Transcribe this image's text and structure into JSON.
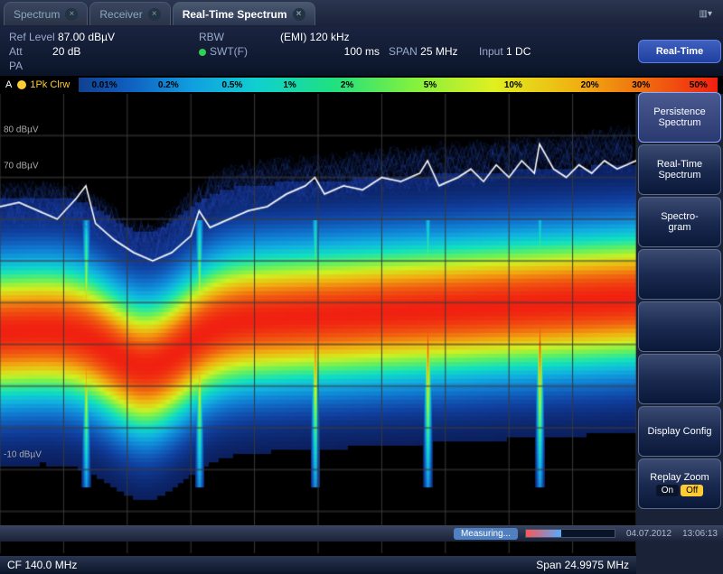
{
  "tabs": [
    {
      "label": "Spectrum",
      "active": false
    },
    {
      "label": "Receiver",
      "active": false
    },
    {
      "label": "Real-Time Spectrum",
      "active": true
    }
  ],
  "mode_label": "Real-Time",
  "settings": {
    "ref_level_lbl": "Ref Level",
    "ref_level_val": "87.00 dBµV",
    "rbw_lbl": "RBW",
    "rbw_val": "(EMI) 120 kHz",
    "att_lbl": "Att",
    "att_val": "20 dB",
    "swt_lbl": "SWT(F)",
    "swt_val": "100 ms",
    "span_lbl": "SPAN",
    "span_val": "25 MHz",
    "input_lbl": "Input",
    "input_val": "1 DC",
    "pa_lbl": "PA"
  },
  "trace": {
    "id": "A",
    "mode": "1Pk Clrw"
  },
  "gradient_ticks": [
    {
      "label": "0.01%",
      "pos": 4
    },
    {
      "label": "0.2%",
      "pos": 14
    },
    {
      "label": "0.5%",
      "pos": 24
    },
    {
      "label": "1%",
      "pos": 33
    },
    {
      "label": "2%",
      "pos": 42
    },
    {
      "label": "5%",
      "pos": 55
    },
    {
      "label": "10%",
      "pos": 68
    },
    {
      "label": "20%",
      "pos": 80
    },
    {
      "label": "30%",
      "pos": 88
    },
    {
      "label": "50%",
      "pos": 97
    }
  ],
  "chart": {
    "ylim": [
      -20,
      90
    ],
    "ymin_draw": -20,
    "ymax_draw": 90,
    "y_ticks": [
      {
        "v": 80,
        "label": "80 dBµV"
      },
      {
        "v": 70,
        "label": "70 dBµV"
      },
      {
        "v": -10,
        "label": "-10 dBµV"
      }
    ],
    "grid_y": [
      80,
      70,
      60,
      50,
      40,
      30,
      20,
      10,
      0,
      -10
    ],
    "grid_x_count": 10,
    "grid_color": "#3a3a3a",
    "background": "#000000",
    "persistence_colors": [
      "#0a1850",
      "#1040a0",
      "#1078d0",
      "#10b0e0",
      "#10e0c0",
      "#60f060",
      "#d0f020",
      "#f0b010",
      "#f06010",
      "#f02010"
    ],
    "carrier_positions": [
      0.135,
      0.313,
      0.495,
      0.672,
      0.848
    ],
    "carrier_peak_db": 60,
    "noise_center_db": 35,
    "noise_spread_db": 28,
    "trace_line": {
      "color": "#ffffff",
      "points": [
        [
          0,
          63
        ],
        [
          0.03,
          64
        ],
        [
          0.06,
          62
        ],
        [
          0.09,
          60
        ],
        [
          0.12,
          65
        ],
        [
          0.135,
          68
        ],
        [
          0.15,
          59
        ],
        [
          0.18,
          55
        ],
        [
          0.21,
          52
        ],
        [
          0.24,
          50
        ],
        [
          0.27,
          52
        ],
        [
          0.3,
          56
        ],
        [
          0.313,
          62
        ],
        [
          0.33,
          58
        ],
        [
          0.36,
          60
        ],
        [
          0.39,
          62
        ],
        [
          0.42,
          63
        ],
        [
          0.45,
          66
        ],
        [
          0.48,
          68
        ],
        [
          0.495,
          70
        ],
        [
          0.51,
          66
        ],
        [
          0.54,
          68
        ],
        [
          0.57,
          67
        ],
        [
          0.6,
          70
        ],
        [
          0.63,
          69
        ],
        [
          0.66,
          71
        ],
        [
          0.672,
          74
        ],
        [
          0.69,
          68
        ],
        [
          0.72,
          70
        ],
        [
          0.74,
          72
        ],
        [
          0.76,
          69
        ],
        [
          0.78,
          73
        ],
        [
          0.8,
          70
        ],
        [
          0.82,
          74
        ],
        [
          0.84,
          71
        ],
        [
          0.848,
          78
        ],
        [
          0.87,
          72
        ],
        [
          0.89,
          70
        ],
        [
          0.91,
          73
        ],
        [
          0.93,
          71
        ],
        [
          0.95,
          74
        ],
        [
          0.97,
          72
        ],
        [
          1.0,
          74
        ]
      ]
    }
  },
  "bottom": {
    "cf_label": "CF 140.0 MHz",
    "span_label": "Span 24.9975 MHz"
  },
  "softkeys": [
    {
      "label": "Persistence Spectrum",
      "active": true
    },
    {
      "label": "Real-Time Spectrum"
    },
    {
      "label": "Spectro-\ngram"
    },
    {
      "label": ""
    },
    {
      "label": ""
    },
    {
      "label": ""
    },
    {
      "label": "Display Config"
    },
    {
      "label": "Replay Zoom",
      "toggle": true
    }
  ],
  "toggle_labels": {
    "on": "On",
    "off": "Off"
  },
  "status": {
    "measuring": "Measuring...",
    "date": "04.07.2012",
    "time": "13:06:13"
  }
}
